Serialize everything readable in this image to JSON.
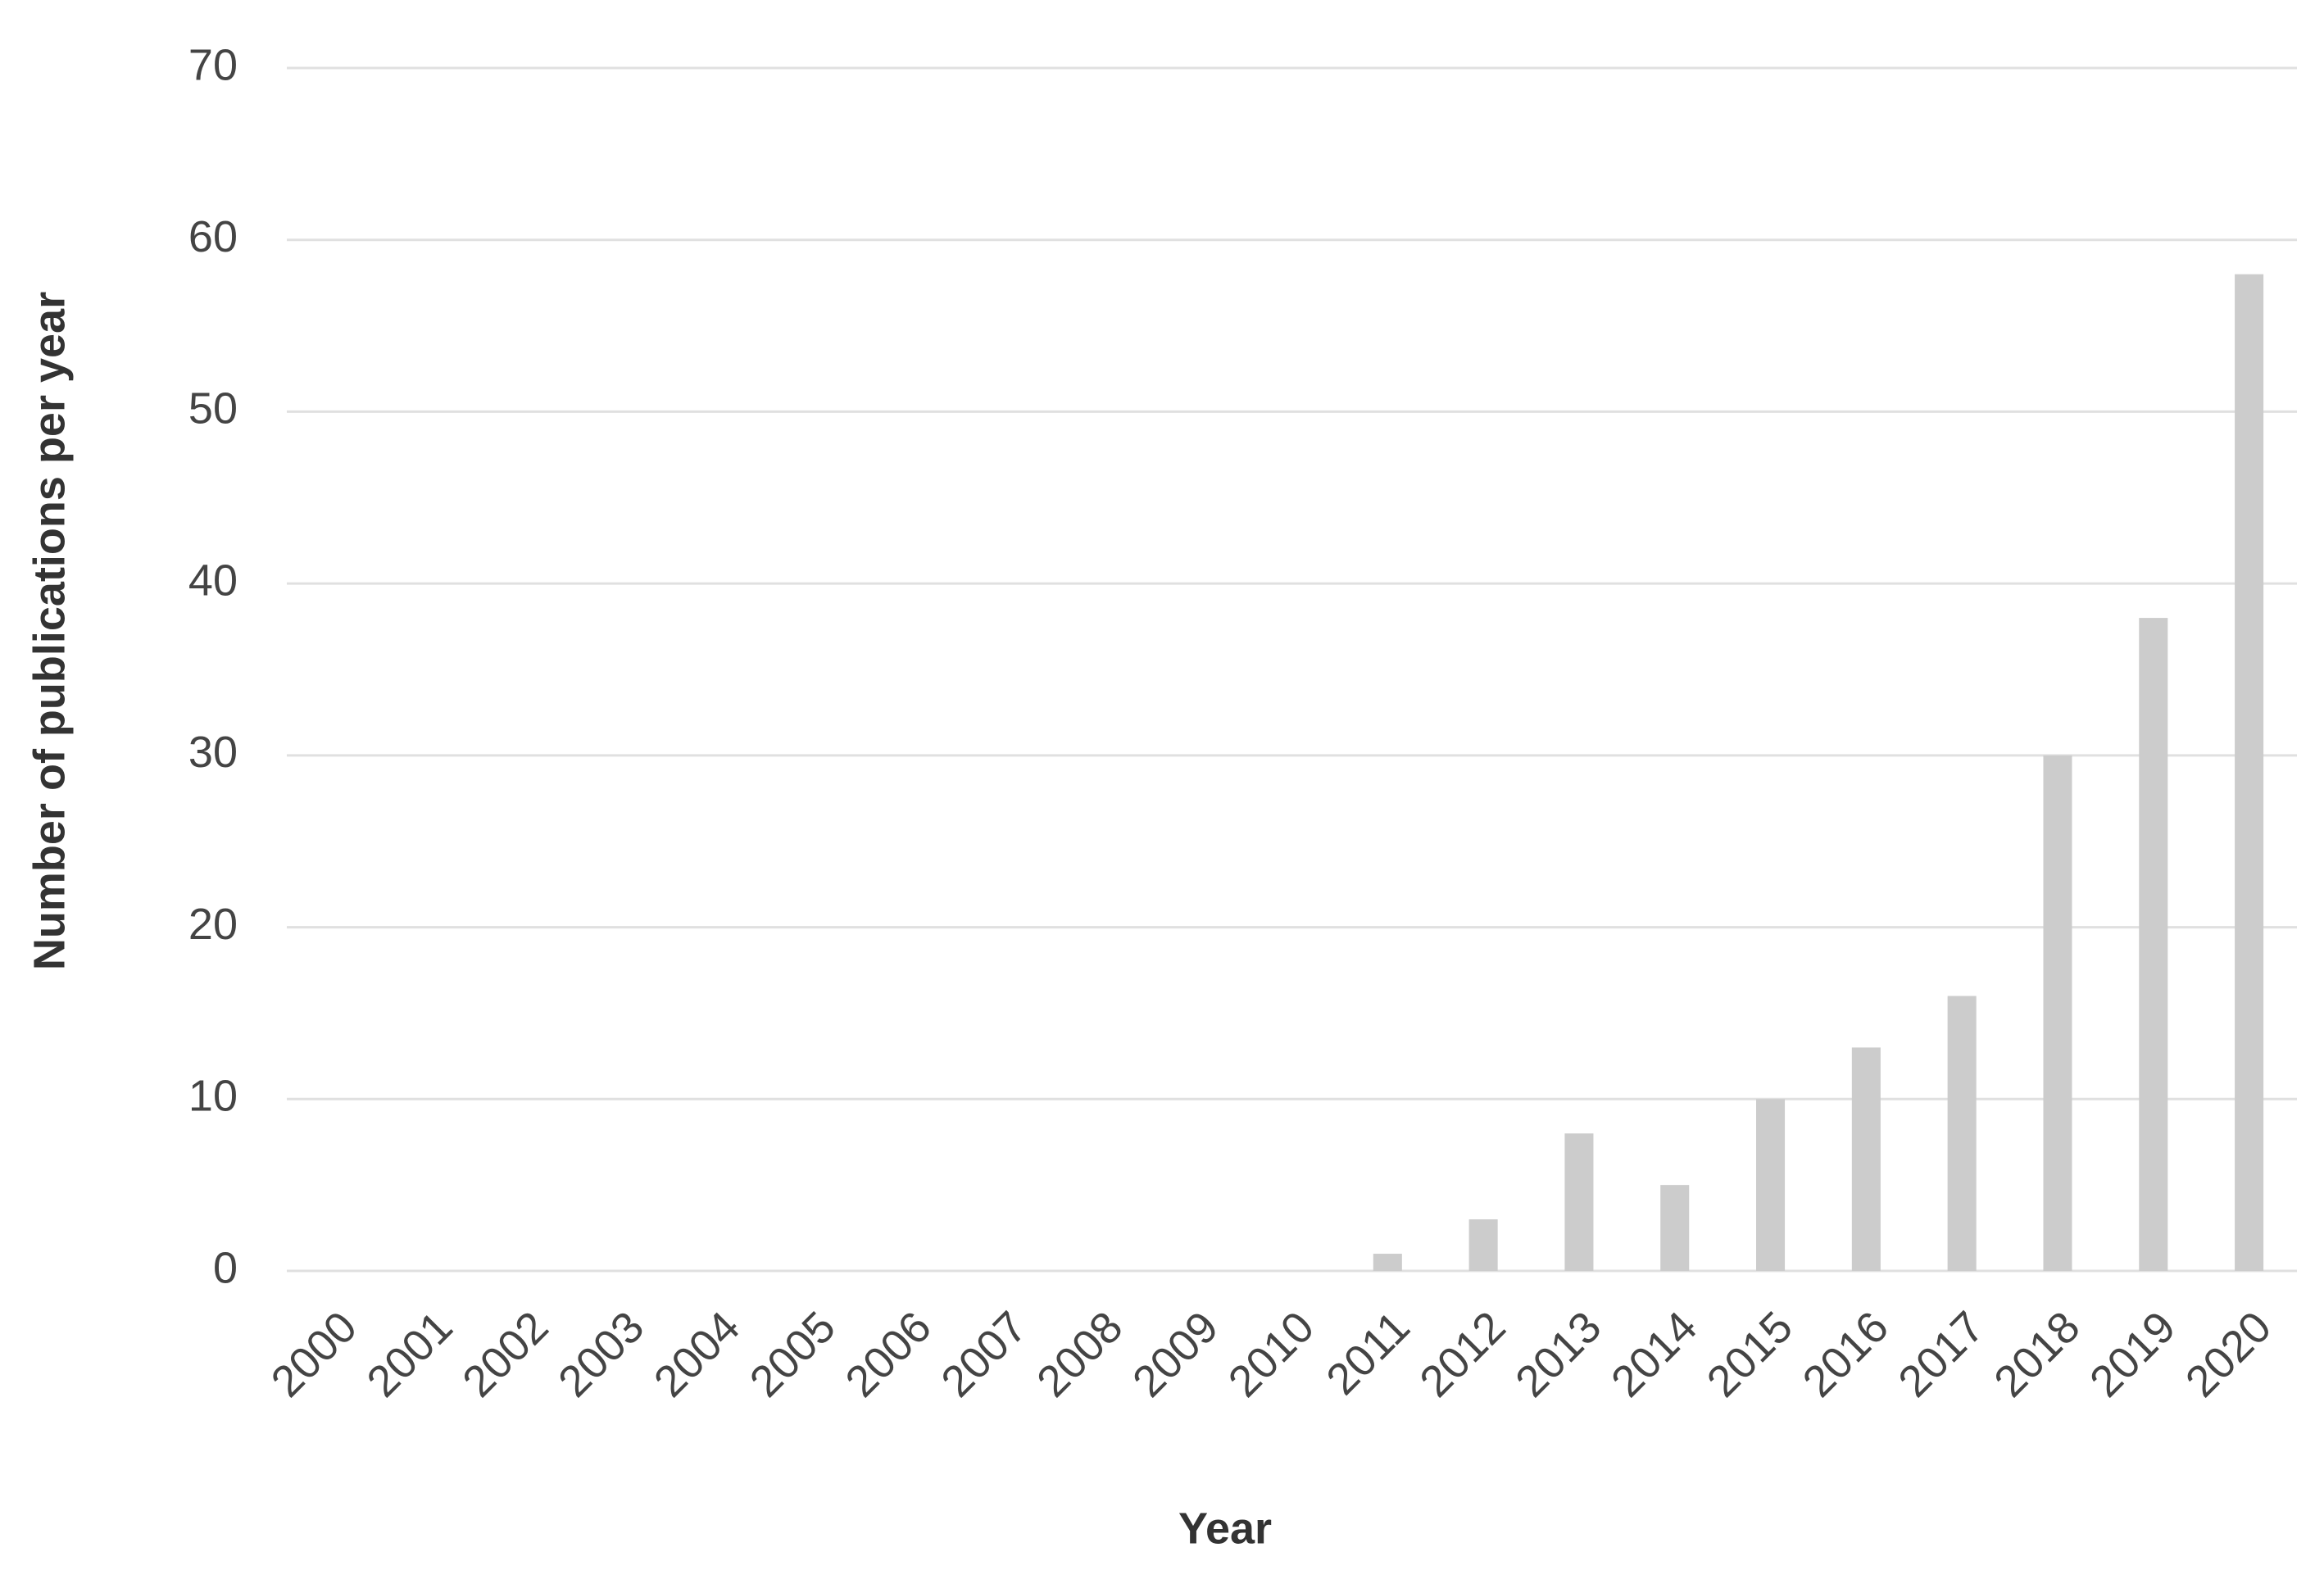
{
  "chart_data": {
    "type": "bar",
    "x_label": "Year",
    "y_label": "Number of publications per year",
    "categories": [
      "2000",
      "2001",
      "2002",
      "2003",
      "2004",
      "2005",
      "2006",
      "2007",
      "2008",
      "2009",
      "2010",
      "2011",
      "2012",
      "2013",
      "2014",
      "2015",
      "2016",
      "2017",
      "2018",
      "2019",
      "2020"
    ],
    "values": [
      0,
      0,
      0,
      0,
      0,
      0,
      0,
      0,
      0,
      0,
      0,
      1,
      3,
      8,
      5,
      10,
      13,
      16,
      30,
      38,
      58
    ],
    "color": "#cccccc",
    "ylim": [
      0,
      70
    ],
    "yticks": [
      0,
      10,
      20,
      30,
      40,
      50,
      60,
      70
    ],
    "grid": true
  }
}
